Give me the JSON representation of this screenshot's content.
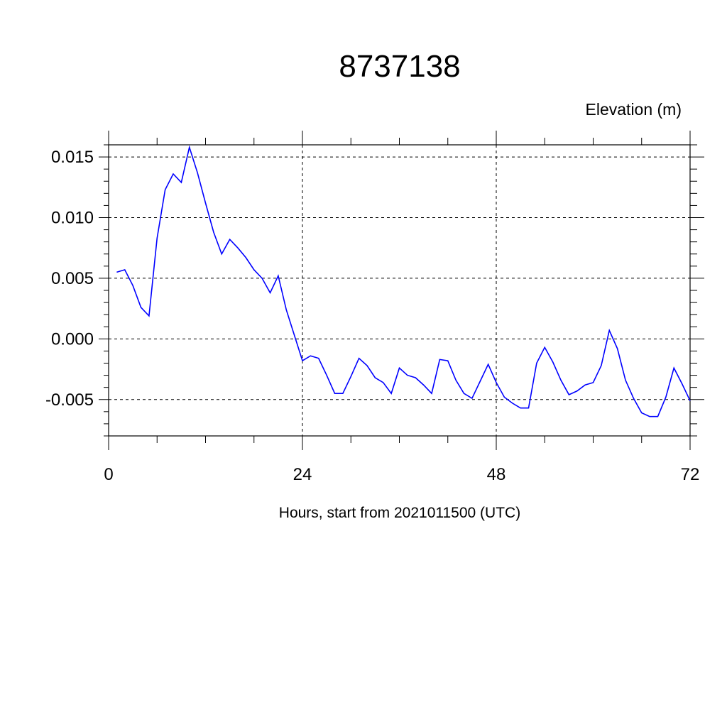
{
  "chart_data": {
    "type": "line",
    "title": "8737138",
    "ylabel": "Elevation (m)",
    "xlabel": "Hours, start from 2021011500 (UTC)",
    "xlim": [
      0,
      72
    ],
    "ylim": [
      -0.008,
      0.016
    ],
    "x_ticks": [
      0,
      24,
      48,
      72
    ],
    "x_tick_labels": [
      "0",
      "24",
      "48",
      "72"
    ],
    "y_ticks": [
      -0.005,
      0.0,
      0.005,
      0.01,
      0.015
    ],
    "y_tick_labels": [
      "-0.005",
      "0.000",
      "0.005",
      "0.010",
      "0.015"
    ],
    "grid": true,
    "series_color": "#0000ff",
    "series": [
      {
        "x": [
          1,
          2,
          3,
          4,
          5,
          6,
          7,
          8,
          9,
          10,
          11,
          12,
          13,
          14,
          15,
          16,
          17,
          18,
          19,
          20,
          21,
          22,
          23,
          24,
          25,
          26,
          27,
          28,
          29,
          30,
          31,
          32,
          33,
          34,
          35,
          36,
          37,
          38,
          39,
          40,
          41,
          42,
          43,
          44,
          45,
          46,
          47,
          48,
          49,
          50,
          51,
          52,
          53,
          54,
          55,
          56,
          57,
          58,
          59,
          60,
          61,
          62,
          63,
          64,
          65,
          66,
          67,
          68,
          69,
          70,
          71,
          72
        ],
        "values": [
          0.0055,
          0.0057,
          0.0044,
          0.0026,
          0.0019,
          0.0083,
          0.0123,
          0.0136,
          0.0129,
          0.0158,
          0.0137,
          0.0112,
          0.0088,
          0.007,
          0.0082,
          0.0075,
          0.0067,
          0.0057,
          0.005,
          0.0038,
          0.0052,
          0.0024,
          0.0003,
          -0.0018,
          -0.0014,
          -0.0016,
          -0.003,
          -0.0045,
          -0.0045,
          -0.0031,
          -0.0016,
          -0.0022,
          -0.0032,
          -0.0036,
          -0.0045,
          -0.0024,
          -0.003,
          -0.0032,
          -0.0038,
          -0.0045,
          -0.0017,
          -0.0018,
          -0.0034,
          -0.0045,
          -0.0049,
          -0.0035,
          -0.0021,
          -0.0036,
          -0.0048,
          -0.0053,
          -0.0057,
          -0.0057,
          -0.002,
          -0.0007,
          -0.0019,
          -0.0034,
          -0.0046,
          -0.0043,
          -0.0038,
          -0.0036,
          -0.0022,
          0.0007,
          -0.0008,
          -0.0034,
          -0.0049,
          -0.0061,
          -0.0064,
          -0.0064,
          -0.0048,
          -0.0024,
          -0.0037,
          -0.0051
        ]
      }
    ]
  }
}
